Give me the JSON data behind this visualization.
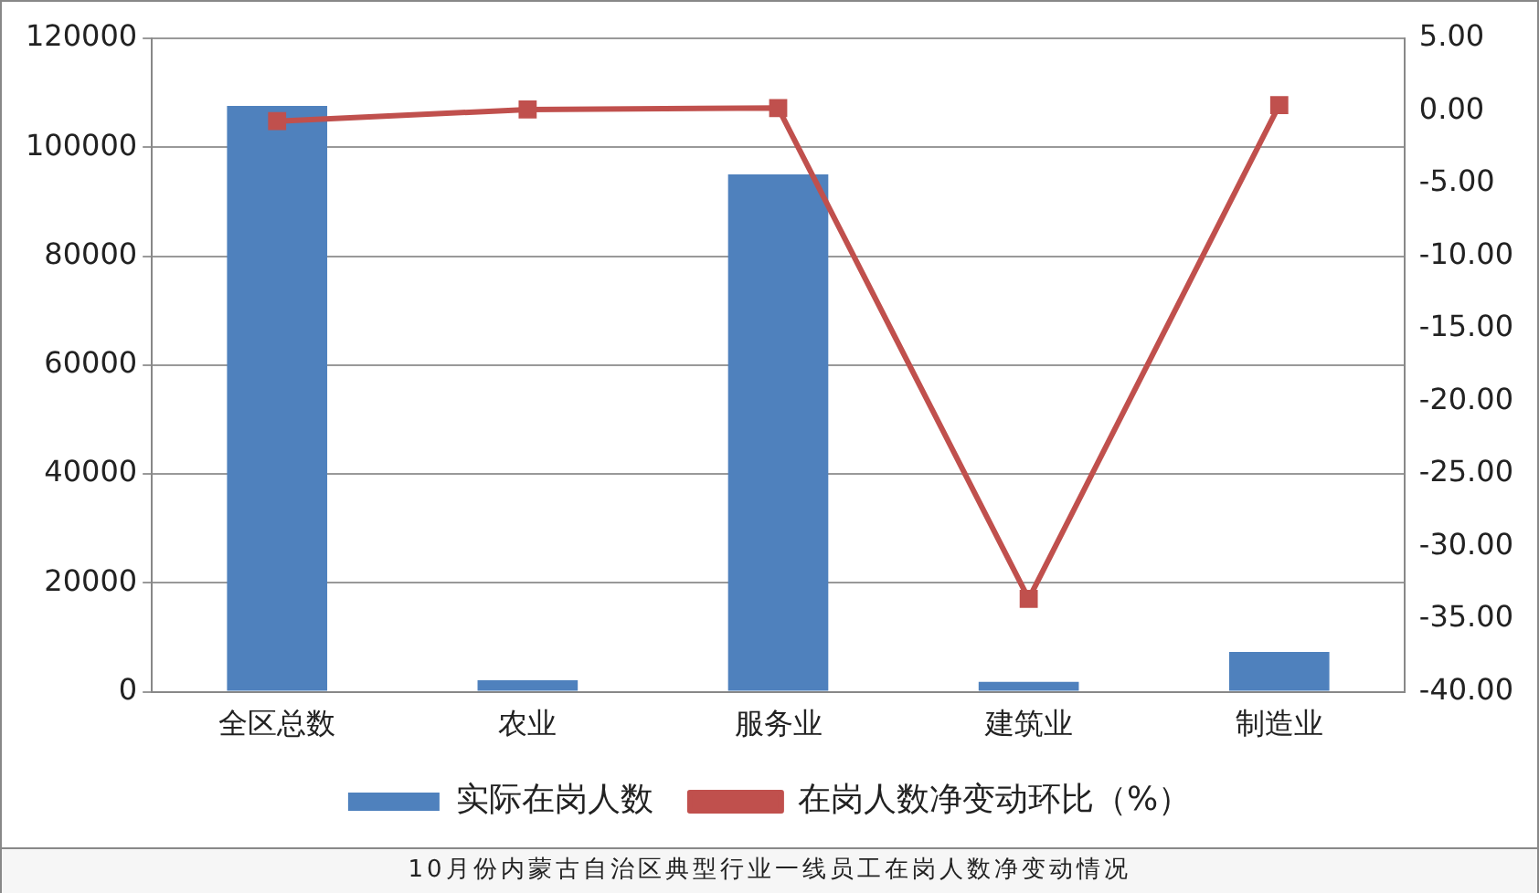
{
  "chart_data": {
    "type": "bar",
    "title": "10月份内蒙古自治区典型行业一线员工在岗人数净变动情况",
    "categories": [
      "全区总数",
      "农业",
      "服务业",
      "建筑业",
      "制造业"
    ],
    "series": [
      {
        "name": "实际在岗人数",
        "color": "#4f81bd",
        "values": [
          107600,
          2100,
          95000,
          1800,
          7300
        ]
      },
      {
        "name": "在岗人数净变动环比（%）",
        "type": "line",
        "axis": "y2",
        "color": "#c0504d",
        "values": [
          -0.7,
          0.1,
          0.2,
          -33.6,
          0.4
        ]
      }
    ],
    "ylim": [
      0,
      120000
    ],
    "yticks": [
      0,
      20000,
      40000,
      60000,
      80000,
      100000,
      120000
    ],
    "y2lim": [
      -40,
      5
    ],
    "y2ticks": [
      {
        "value": 5,
        "label": "5.00"
      },
      {
        "value": 0,
        "label": "0.00"
      },
      {
        "value": -5,
        "label": "-5.00"
      },
      {
        "value": -10,
        "label": "-10.00"
      },
      {
        "value": -15,
        "label": "-15.00"
      },
      {
        "value": -20,
        "label": "-20.00"
      },
      {
        "value": -25,
        "label": "-25.00"
      },
      {
        "value": -30,
        "label": "-30.00"
      },
      {
        "value": -35,
        "label": "-35.00"
      },
      {
        "value": -40,
        "label": "-40.00"
      }
    ],
    "grid": "y",
    "legend": "bottom",
    "marker": "square",
    "line_style": "solid"
  }
}
